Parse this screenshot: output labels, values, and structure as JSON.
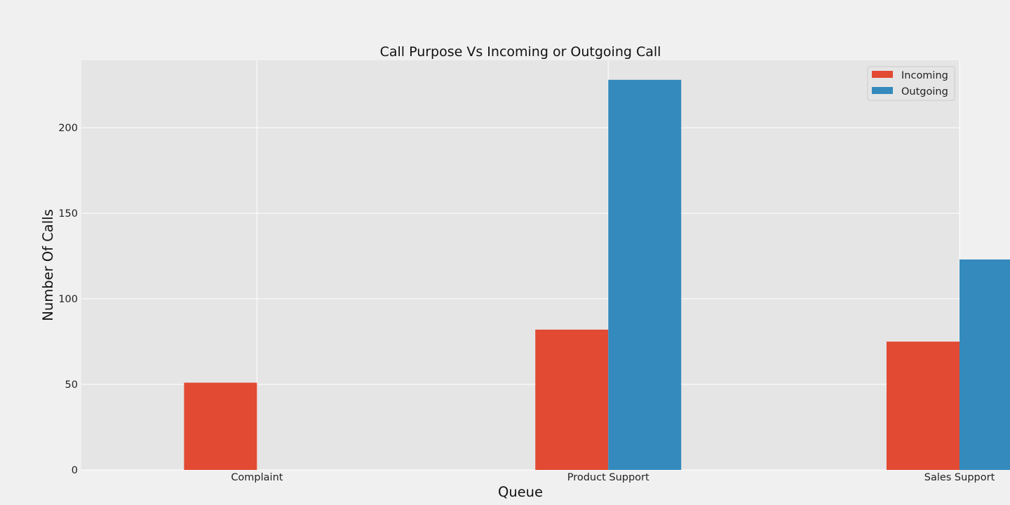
{
  "chart_data": {
    "type": "bar",
    "title": "Call Purpose Vs Incoming or Outgoing Call",
    "xlabel": "Queue",
    "ylabel": "Number Of Calls",
    "categories": [
      "Complaint",
      "Product Support",
      "Sales Support"
    ],
    "series": [
      {
        "name": "Incoming",
        "values": [
          51,
          82,
          75
        ],
        "color": "#e24a33"
      },
      {
        "name": "Outgoing",
        "values": [
          0,
          228,
          123
        ],
        "color": "#348abd"
      }
    ],
    "ylim": [
      0,
      239.4
    ],
    "yticks": [
      0,
      50,
      100,
      150,
      200
    ],
    "grid": true,
    "legend_position": "top-right",
    "plot_background": "#e5e5e5",
    "figure_background": "#f0f0f0"
  }
}
